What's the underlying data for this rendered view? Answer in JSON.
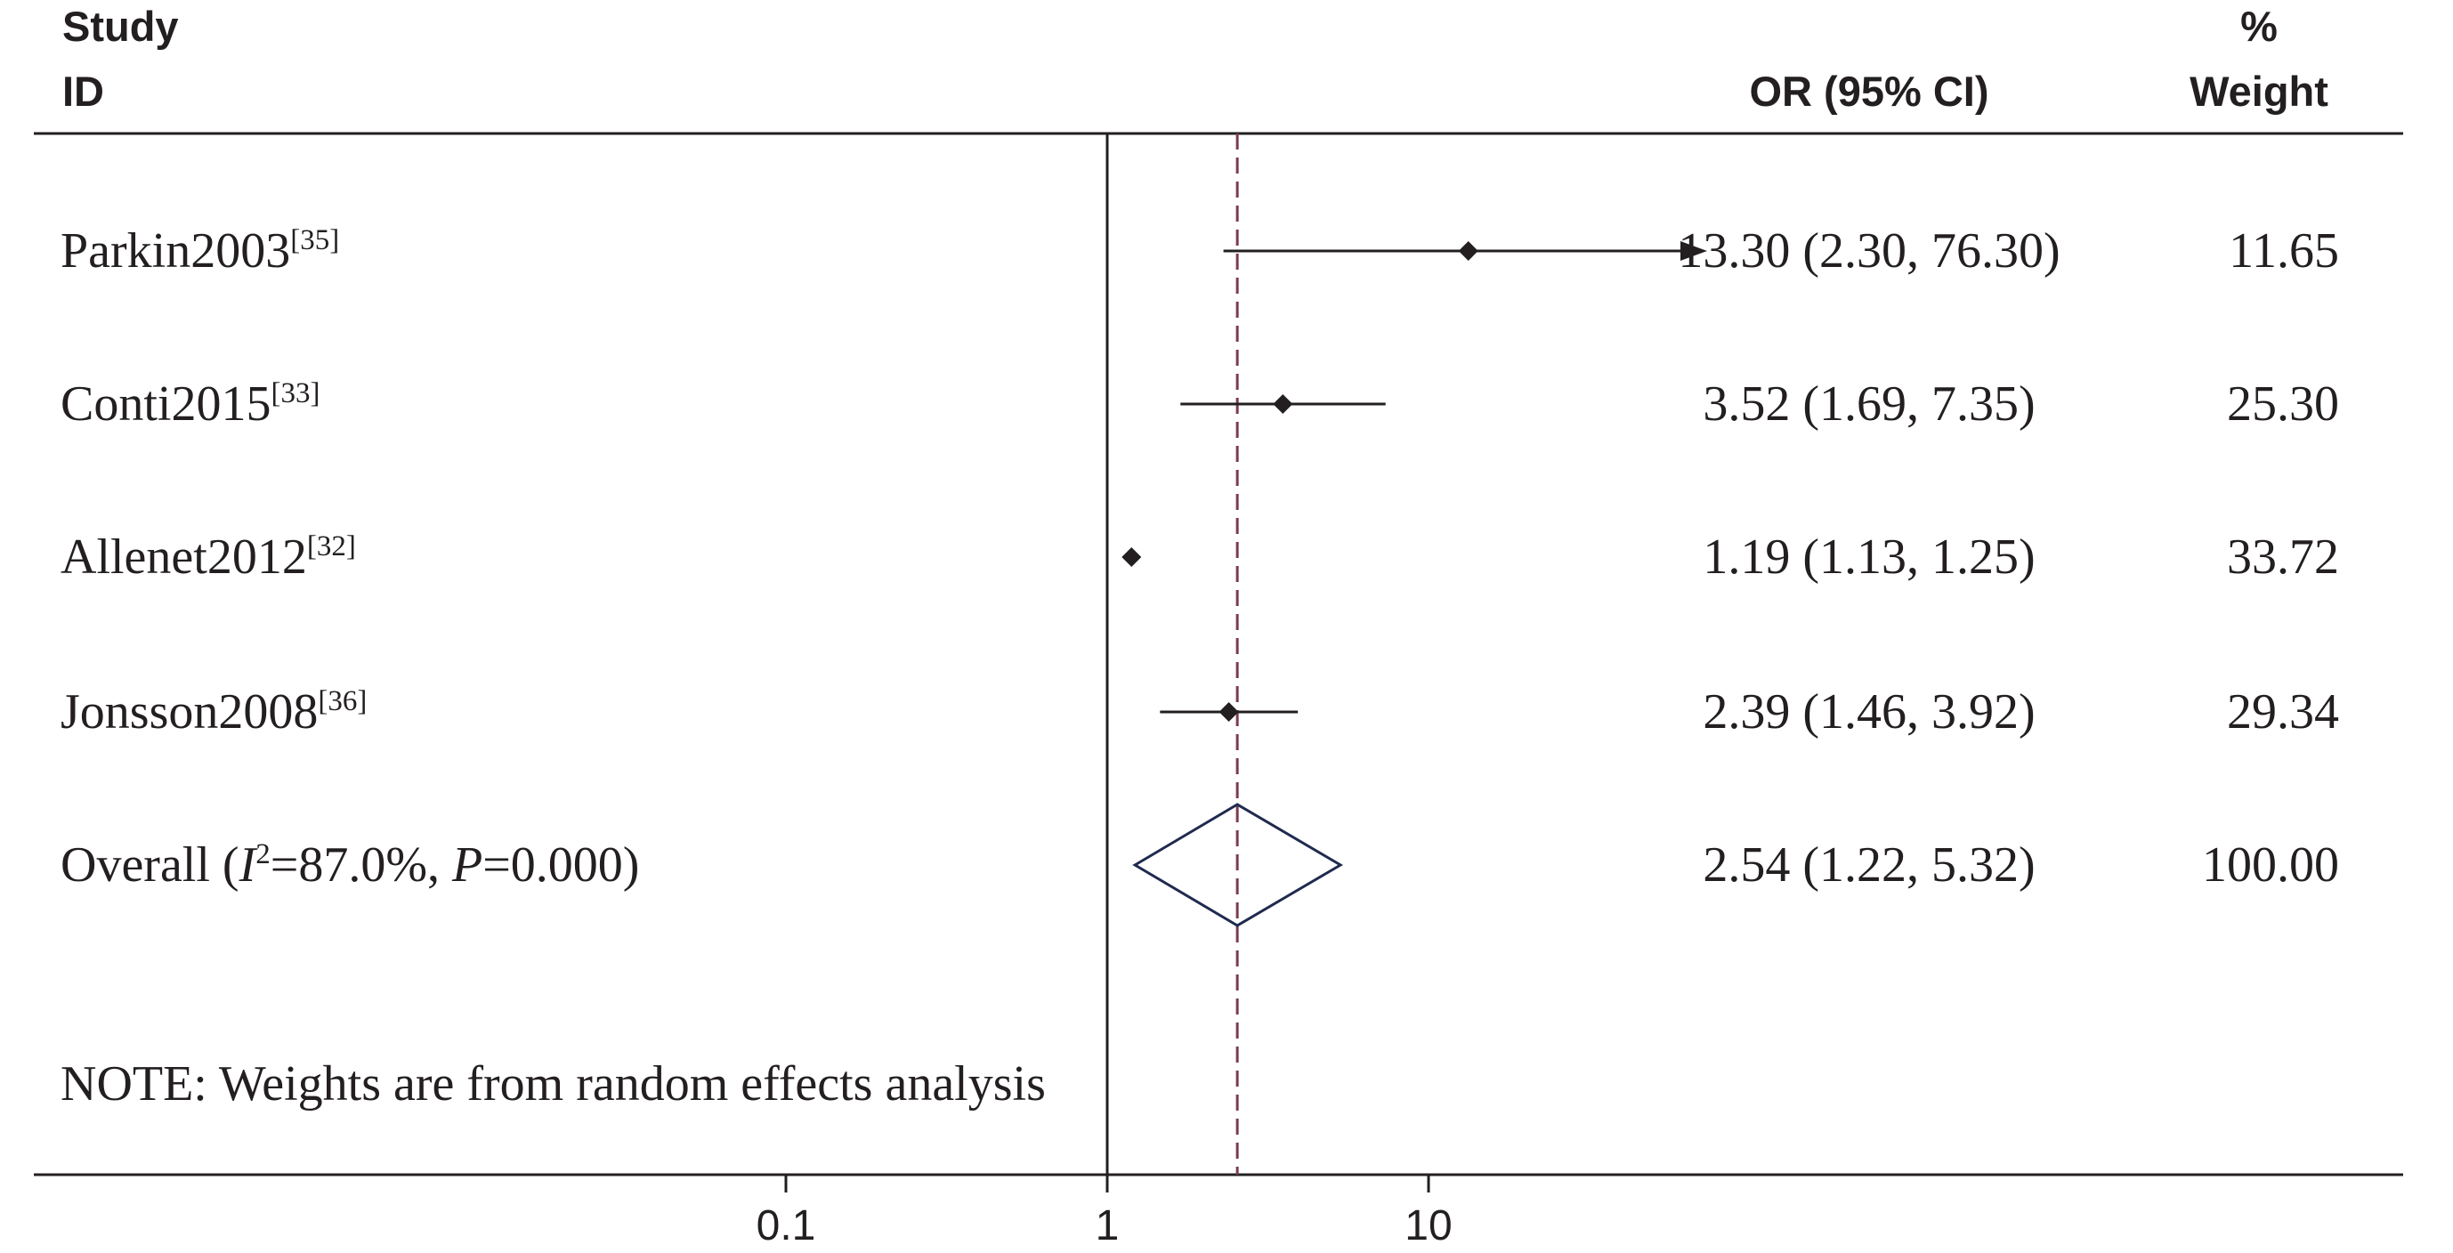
{
  "chart_data": {
    "type": "forest",
    "headers": {
      "study_line1": "Study",
      "study_line2": "ID",
      "effect": "OR (95% CI)",
      "weight_line1": "%",
      "weight_line2": "Weight"
    },
    "studies": [
      {
        "name": "Parkin2003",
        "ref": "[35]",
        "or": 13.3,
        "lo": 2.3,
        "hi": 76.3,
        "ci_text": "13.30 (2.30, 76.30)",
        "weight": "11.65",
        "arrow_right": true
      },
      {
        "name": "Conti2015",
        "ref": "[33]",
        "or": 3.52,
        "lo": 1.69,
        "hi": 7.35,
        "ci_text": "3.52 (1.69, 7.35)",
        "weight": "25.30",
        "arrow_right": false
      },
      {
        "name": "Allenet2012",
        "ref": "[32]",
        "or": 1.19,
        "lo": 1.13,
        "hi": 1.25,
        "ci_text": "1.19 (1.13, 1.25)",
        "weight": "33.72",
        "arrow_right": false
      },
      {
        "name": "Jonsson2008",
        "ref": "[36]",
        "or": 2.39,
        "lo": 1.46,
        "hi": 3.92,
        "ci_text": "2.39 (1.46, 3.92)",
        "weight": "29.34",
        "arrow_right": false
      }
    ],
    "overall": {
      "label_prefix": "Overall  (",
      "i2_symbol": "I",
      "i2_exp": "2",
      "i2_value": "=87.0%, ",
      "p_symbol": "P",
      "p_value": "=0.000)",
      "or": 2.54,
      "lo": 1.22,
      "hi": 5.32,
      "ci_text": "2.54 (1.22, 5.32)",
      "weight": "100.00"
    },
    "note": "NOTE: Weights are from random effects analysis",
    "x_scale": "log",
    "x_ticks": [
      {
        "value": 0.1,
        "label": "0.1"
      },
      {
        "value": 1,
        "label": "1"
      },
      {
        "value": 10,
        "label": "10"
      }
    ],
    "null_line": 1,
    "colors": {
      "ink": "#231f20",
      "overall_line": "#7a3b4e",
      "diamond": "#1f2a4f"
    }
  }
}
